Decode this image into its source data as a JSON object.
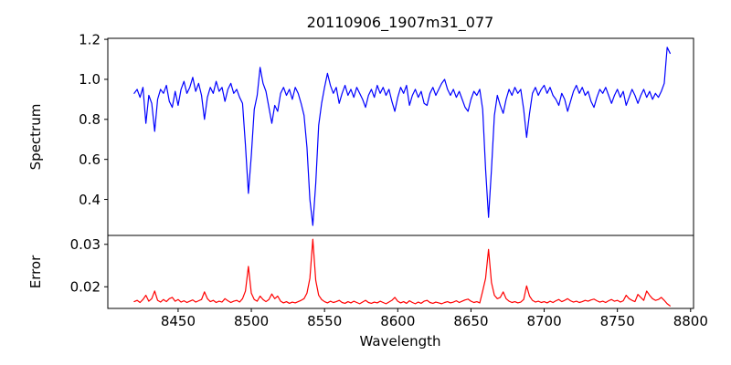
{
  "figure": {
    "title": "20110906_1907m31_077",
    "xlabel": "Wavelength",
    "background_color": "#ffffff",
    "frame_color": "#000000"
  },
  "chart_data": [
    {
      "type": "line",
      "title": "20110906_1907m31_077",
      "ylabel": "Spectrum",
      "series_name": "spectrum",
      "line_color": "#0000ff",
      "grid": false,
      "legend": "none",
      "x_start": 8420,
      "x_step": 2,
      "xlim": [
        8402,
        8802
      ],
      "ylim": [
        0.22,
        1.205
      ],
      "ytick_values": [
        0.4,
        0.6,
        0.8,
        1.0,
        1.2
      ],
      "ytick_labels": [
        "0.4",
        "0.6",
        "0.8",
        "1.0",
        "1.2"
      ],
      "values": [
        0.93,
        0.95,
        0.91,
        0.96,
        0.78,
        0.92,
        0.88,
        0.74,
        0.9,
        0.95,
        0.93,
        0.97,
        0.89,
        0.86,
        0.94,
        0.87,
        0.95,
        0.99,
        0.93,
        0.96,
        1.01,
        0.94,
        0.98,
        0.92,
        0.8,
        0.91,
        0.96,
        0.93,
        0.99,
        0.94,
        0.96,
        0.89,
        0.95,
        0.98,
        0.93,
        0.95,
        0.91,
        0.88,
        0.67,
        0.43,
        0.62,
        0.85,
        0.92,
        1.06,
        0.98,
        0.94,
        0.86,
        0.78,
        0.87,
        0.84,
        0.93,
        0.96,
        0.92,
        0.95,
        0.9,
        0.96,
        0.93,
        0.88,
        0.82,
        0.66,
        0.4,
        0.27,
        0.48,
        0.77,
        0.88,
        0.96,
        1.03,
        0.97,
        0.93,
        0.96,
        0.88,
        0.93,
        0.97,
        0.92,
        0.95,
        0.91,
        0.96,
        0.93,
        0.9,
        0.86,
        0.92,
        0.95,
        0.91,
        0.97,
        0.93,
        0.96,
        0.92,
        0.95,
        0.89,
        0.84,
        0.91,
        0.96,
        0.93,
        0.97,
        0.87,
        0.92,
        0.95,
        0.91,
        0.94,
        0.88,
        0.87,
        0.93,
        0.96,
        0.92,
        0.95,
        0.98,
        1.0,
        0.95,
        0.92,
        0.95,
        0.91,
        0.94,
        0.9,
        0.86,
        0.84,
        0.9,
        0.94,
        0.92,
        0.95,
        0.85,
        0.55,
        0.31,
        0.55,
        0.82,
        0.92,
        0.87,
        0.83,
        0.9,
        0.95,
        0.92,
        0.96,
        0.93,
        0.95,
        0.85,
        0.71,
        0.83,
        0.93,
        0.96,
        0.92,
        0.95,
        0.97,
        0.93,
        0.96,
        0.92,
        0.9,
        0.87,
        0.93,
        0.9,
        0.84,
        0.89,
        0.94,
        0.97,
        0.93,
        0.96,
        0.92,
        0.94,
        0.89,
        0.86,
        0.91,
        0.95,
        0.93,
        0.96,
        0.92,
        0.88,
        0.92,
        0.95,
        0.91,
        0.94,
        0.87,
        0.91,
        0.95,
        0.92,
        0.88,
        0.92,
        0.95,
        0.91,
        0.94,
        0.9,
        0.93,
        0.91,
        0.94,
        0.98,
        1.16,
        1.13
      ]
    },
    {
      "type": "line",
      "ylabel": "Error",
      "xlabel": "Wavelength",
      "series_name": "error",
      "line_color": "#ff0000",
      "grid": false,
      "legend": "none",
      "x_start": 8420,
      "x_step": 2,
      "xlim": [
        8402,
        8802
      ],
      "ylim": [
        0.0149,
        0.0321
      ],
      "ytick_values": [
        0.02,
        0.03
      ],
      "ytick_labels": [
        "0.02",
        "0.03"
      ],
      "xtick_values": [
        8450,
        8500,
        8550,
        8600,
        8650,
        8700,
        8750,
        8800
      ],
      "xtick_labels": [
        "8450",
        "8500",
        "8550",
        "8600",
        "8650",
        "8700",
        "8750",
        "8800"
      ],
      "values": [
        0.0165,
        0.0168,
        0.0163,
        0.017,
        0.018,
        0.0166,
        0.0172,
        0.019,
        0.0168,
        0.0164,
        0.017,
        0.0165,
        0.0172,
        0.0175,
        0.0166,
        0.017,
        0.0164,
        0.0167,
        0.0163,
        0.0166,
        0.0169,
        0.0164,
        0.0167,
        0.017,
        0.0188,
        0.0172,
        0.0165,
        0.0168,
        0.0163,
        0.0166,
        0.0164,
        0.0172,
        0.0167,
        0.0163,
        0.0166,
        0.0168,
        0.0164,
        0.0172,
        0.019,
        0.0248,
        0.0185,
        0.017,
        0.0166,
        0.0178,
        0.017,
        0.0165,
        0.017,
        0.0183,
        0.0172,
        0.0178,
        0.0166,
        0.0162,
        0.0165,
        0.0161,
        0.0164,
        0.0162,
        0.0165,
        0.0168,
        0.0172,
        0.0185,
        0.022,
        0.0312,
        0.0215,
        0.018,
        0.017,
        0.0165,
        0.0162,
        0.0166,
        0.0163,
        0.0165,
        0.0168,
        0.0163,
        0.0161,
        0.0165,
        0.0162,
        0.0166,
        0.0163,
        0.016,
        0.0164,
        0.0168,
        0.0163,
        0.0161,
        0.0164,
        0.0162,
        0.0166,
        0.0163,
        0.016,
        0.0164,
        0.0168,
        0.0175,
        0.0166,
        0.0162,
        0.0165,
        0.0161,
        0.0167,
        0.0163,
        0.016,
        0.0164,
        0.0161,
        0.0166,
        0.0168,
        0.0163,
        0.0161,
        0.0164,
        0.0162,
        0.016,
        0.0163,
        0.0165,
        0.0162,
        0.0164,
        0.0167,
        0.0163,
        0.0166,
        0.0169,
        0.0171,
        0.0166,
        0.0163,
        0.0165,
        0.0162,
        0.019,
        0.022,
        0.0288,
        0.021,
        0.018,
        0.0172,
        0.0175,
        0.0188,
        0.0172,
        0.0166,
        0.0163,
        0.0165,
        0.0162,
        0.0164,
        0.017,
        0.0202,
        0.0178,
        0.0168,
        0.0164,
        0.0166,
        0.0163,
        0.0165,
        0.0162,
        0.0166,
        0.0163,
        0.0167,
        0.017,
        0.0165,
        0.0168,
        0.0172,
        0.0167,
        0.0164,
        0.0166,
        0.0163,
        0.0165,
        0.0168,
        0.0166,
        0.0169,
        0.0171,
        0.0167,
        0.0164,
        0.0166,
        0.0163,
        0.0167,
        0.017,
        0.0166,
        0.0168,
        0.0164,
        0.0167,
        0.018,
        0.0172,
        0.0168,
        0.0165,
        0.0182,
        0.0175,
        0.0168,
        0.019,
        0.018,
        0.0172,
        0.0168,
        0.017,
        0.0175,
        0.0168,
        0.016,
        0.0155
      ]
    }
  ]
}
